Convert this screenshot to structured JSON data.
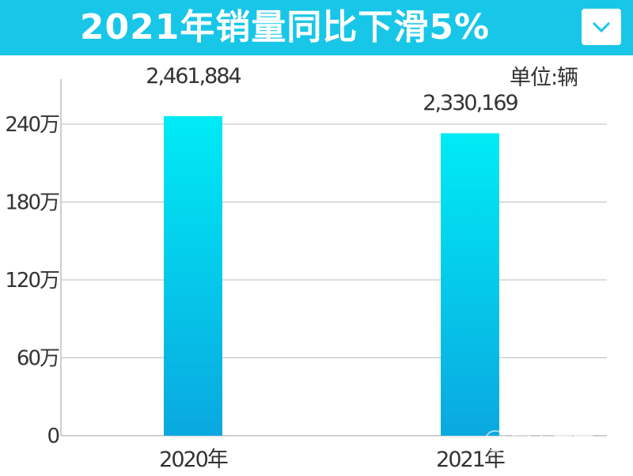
{
  "header": {
    "title": "2021年销量同比下滑5%",
    "dropdown_icon": "chevron-down-icon"
  },
  "unit_label": "单位:辆",
  "colors": {
    "banner": "#18c6e8",
    "bar_top": "#00ebf5",
    "bar_bottom": "#0aa8e0",
    "grid": "#bdbdbd",
    "axis_text": "#333333"
  },
  "watermark": {
    "text": "网上车市"
  },
  "chart_data": {
    "type": "bar",
    "categories": [
      "2020年",
      "2021年"
    ],
    "values": [
      2461884,
      2330169
    ],
    "data_labels": [
      "2,461,884",
      "2,330,169"
    ],
    "y_ticks": [
      0,
      600000,
      1200000,
      1800000,
      2400000
    ],
    "y_tick_labels": [
      "0",
      "60万",
      "120万",
      "180万",
      "240万"
    ],
    "ylim": [
      0,
      2880000
    ],
    "grid": true
  }
}
